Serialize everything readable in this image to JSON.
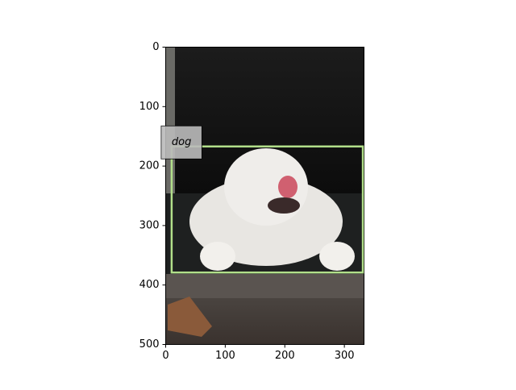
{
  "chart_data": {
    "type": "image",
    "xlim": [
      0,
      333
    ],
    "ylim": [
      500,
      0
    ],
    "xticks": [
      0,
      100,
      200,
      300
    ],
    "yticks": [
      0,
      100,
      200,
      300,
      400,
      500
    ],
    "boxes": [
      {
        "label": "dog",
        "x0": 10,
        "y0": 167,
        "x1": 331,
        "y1": 379,
        "color": "#b2df8a"
      }
    ]
  }
}
